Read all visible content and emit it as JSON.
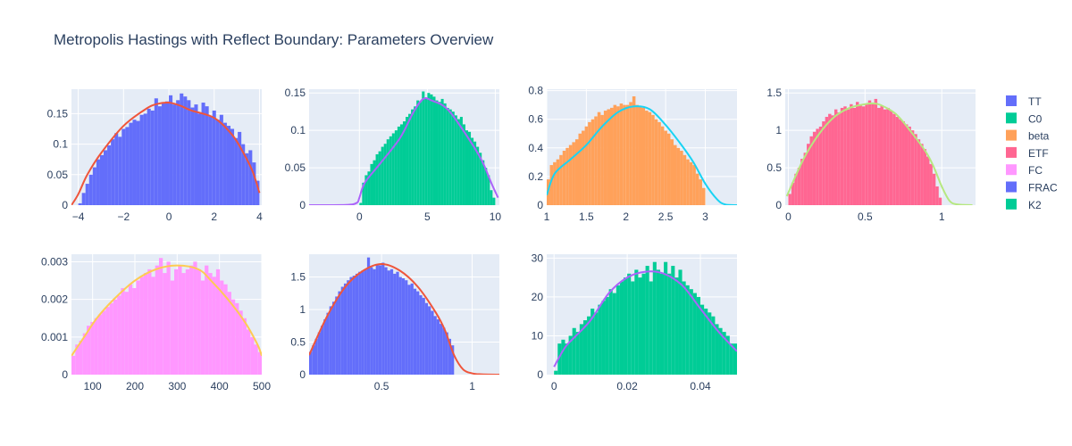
{
  "chart_data": {
    "type": "histogram-grid",
    "title": "Metropolis Hastings with Reflect Boundary: Parameters Overview",
    "legend": {
      "placement": "right",
      "entries": [
        {
          "name": "TT",
          "color": "#636efa"
        },
        {
          "name": "C0",
          "color": "#00cc96"
        },
        {
          "name": "beta",
          "color": "#ffa15a"
        },
        {
          "name": "ETF",
          "color": "#ff6692"
        },
        {
          "name": "FC",
          "color": "#ff97ff"
        },
        {
          "name": "FRAC",
          "color": "#636efa"
        },
        {
          "name": "K2",
          "color": "#00cc96"
        }
      ]
    },
    "panels": [
      {
        "name": "TT",
        "bar_color": "#636efa",
        "curve_color": "#ef553b",
        "xlim": [
          -4.3,
          4.1
        ],
        "ylim": [
          0,
          0.19
        ],
        "xticks": [
          {
            "v": -4,
            "l": "−4"
          },
          {
            "v": -2,
            "l": "−2"
          },
          {
            "v": 0,
            "l": "0"
          },
          {
            "v": 2,
            "l": "2"
          },
          {
            "v": 4,
            "l": "4"
          }
        ],
        "yticks": [
          {
            "v": 0,
            "l": "0"
          },
          {
            "v": 0.05,
            "l": "0.05"
          },
          {
            "v": 0.1,
            "l": "0.1"
          },
          {
            "v": 0.15,
            "l": "0.15"
          }
        ],
        "bin_edges": [
          -4,
          4
        ],
        "bins": 50,
        "hist": [
          0.003,
          0.02,
          0.035,
          0.05,
          0.062,
          0.075,
          0.082,
          0.09,
          0.098,
          0.108,
          0.118,
          0.112,
          0.125,
          0.128,
          0.135,
          0.14,
          0.138,
          0.148,
          0.15,
          0.158,
          0.155,
          0.175,
          0.162,
          0.168,
          0.17,
          0.18,
          0.165,
          0.172,
          0.183,
          0.178,
          0.172,
          0.16,
          0.165,
          0.15,
          0.168,
          0.162,
          0.145,
          0.155,
          0.14,
          0.148,
          0.135,
          0.13,
          0.125,
          0.11,
          0.12,
          0.1,
          0.085,
          0.09,
          0.07,
          0.04
        ],
        "curve_x": [
          -4.3,
          -4.0,
          -3.6,
          -3.0,
          -2.0,
          -1.0,
          -0.5,
          0.0,
          0.5,
          1.0,
          2.0,
          2.8,
          3.3,
          3.7,
          4.0
        ],
        "curve_y": [
          0.0,
          0.018,
          0.05,
          0.085,
          0.13,
          0.158,
          0.166,
          0.168,
          0.163,
          0.155,
          0.143,
          0.115,
          0.085,
          0.055,
          0.02
        ]
      },
      {
        "name": "C0",
        "bar_color": "#00cc96",
        "curve_color": "#ab63fa",
        "xlim": [
          -3.7,
          10.3
        ],
        "ylim": [
          0,
          0.155
        ],
        "xticks": [
          {
            "v": 0,
            "l": "0"
          },
          {
            "v": 5,
            "l": "5"
          },
          {
            "v": 10,
            "l": "10"
          }
        ],
        "yticks": [
          {
            "v": 0,
            "l": "0"
          },
          {
            "v": 0.05,
            "l": "0.05"
          },
          {
            "v": 0.1,
            "l": "0.1"
          },
          {
            "v": 0.15,
            "l": "0.15"
          }
        ],
        "bin_edges": [
          0,
          10
        ],
        "bins": 50,
        "hist": [
          0.003,
          0.03,
          0.04,
          0.045,
          0.055,
          0.06,
          0.068,
          0.072,
          0.078,
          0.082,
          0.088,
          0.092,
          0.096,
          0.1,
          0.105,
          0.108,
          0.112,
          0.118,
          0.122,
          0.128,
          0.132,
          0.14,
          0.138,
          0.152,
          0.142,
          0.15,
          0.148,
          0.145,
          0.14,
          0.138,
          0.142,
          0.136,
          0.13,
          0.128,
          0.125,
          0.12,
          0.115,
          0.118,
          0.108,
          0.1,
          0.098,
          0.09,
          0.085,
          0.078,
          0.07,
          0.06,
          0.05,
          0.04,
          0.02,
          0.01
        ],
        "curve_x": [
          -3.7,
          -1.0,
          -0.2,
          0.0,
          0.4,
          1.5,
          3.0,
          4.0,
          4.7,
          5.3,
          6.5,
          8.0,
          9.0,
          9.7,
          10.2
        ],
        "curve_y": [
          0.0,
          0.0003,
          0.003,
          0.01,
          0.03,
          0.055,
          0.09,
          0.125,
          0.142,
          0.14,
          0.128,
          0.09,
          0.06,
          0.03,
          0.01
        ]
      },
      {
        "name": "beta",
        "bar_color": "#ffa15a",
        "curve_color": "#19d3f3",
        "xlim": [
          1.0,
          3.4
        ],
        "ylim": [
          0,
          0.81
        ],
        "xticks": [
          {
            "v": 1,
            "l": "1"
          },
          {
            "v": 1.5,
            "l": "1.5"
          },
          {
            "v": 2,
            "l": "2"
          },
          {
            "v": 2.5,
            "l": "2.5"
          },
          {
            "v": 3,
            "l": "3"
          }
        ],
        "yticks": [
          {
            "v": 0,
            "l": "0"
          },
          {
            "v": 0.2,
            "l": "0.2"
          },
          {
            "v": 0.4,
            "l": "0.4"
          },
          {
            "v": 0.6,
            "l": "0.6"
          },
          {
            "v": 0.8,
            "l": "0.8"
          }
        ],
        "bin_edges": [
          1,
          3
        ],
        "bins": 50,
        "hist": [
          0.18,
          0.28,
          0.3,
          0.32,
          0.35,
          0.38,
          0.4,
          0.42,
          0.44,
          0.46,
          0.5,
          0.52,
          0.55,
          0.58,
          0.6,
          0.62,
          0.65,
          0.63,
          0.66,
          0.67,
          0.68,
          0.7,
          0.69,
          0.71,
          0.7,
          0.7,
          0.72,
          0.76,
          0.7,
          0.69,
          0.68,
          0.66,
          0.65,
          0.63,
          0.6,
          0.58,
          0.55,
          0.52,
          0.5,
          0.46,
          0.42,
          0.4,
          0.38,
          0.35,
          0.32,
          0.3,
          0.28,
          0.22,
          0.18,
          0.12
        ],
        "curve_x": [
          1.0,
          1.1,
          1.3,
          1.5,
          1.7,
          1.9,
          2.1,
          2.3,
          2.5,
          2.7,
          2.85,
          3.0,
          3.15,
          3.25,
          3.4
        ],
        "curve_y": [
          0.07,
          0.22,
          0.32,
          0.42,
          0.55,
          0.65,
          0.69,
          0.67,
          0.56,
          0.42,
          0.3,
          0.15,
          0.04,
          0.005,
          0.0
        ]
      },
      {
        "name": "ETF",
        "bar_color": "#ff6692",
        "curve_color": "#b6e880",
        "xlim": [
          -0.02,
          1.22
        ],
        "ylim": [
          0,
          1.55
        ],
        "xticks": [
          {
            "v": 0,
            "l": "0"
          },
          {
            "v": 0.5,
            "l": "0.5"
          },
          {
            "v": 1,
            "l": "1"
          }
        ],
        "yticks": [
          {
            "v": 0,
            "l": "0"
          },
          {
            "v": 0.5,
            "l": "0.5"
          },
          {
            "v": 1,
            "l": "1"
          },
          {
            "v": 1.5,
            "l": "1.5"
          }
        ],
        "bin_edges": [
          0,
          1
        ],
        "bins": 50,
        "hist": [
          0.15,
          0.3,
          0.42,
          0.5,
          0.62,
          0.7,
          0.82,
          0.92,
          0.98,
          1.02,
          1.05,
          1.12,
          1.18,
          1.22,
          1.2,
          1.28,
          1.24,
          1.3,
          1.32,
          1.28,
          1.35,
          1.3,
          1.38,
          1.34,
          1.32,
          1.36,
          1.4,
          1.35,
          1.42,
          1.3,
          1.33,
          1.28,
          1.3,
          1.26,
          1.22,
          1.18,
          1.15,
          1.12,
          1.08,
          1.05,
          1.0,
          0.95,
          0.88,
          0.82,
          0.75,
          0.65,
          0.55,
          0.42,
          0.25,
          0.1
        ],
        "curve_x": [
          -0.01,
          0.1,
          0.2,
          0.3,
          0.4,
          0.5,
          0.55,
          0.6,
          0.7,
          0.8,
          0.9,
          0.95,
          1.0,
          1.05,
          1.1,
          1.2
        ],
        "curve_y": [
          0.12,
          0.62,
          0.95,
          1.18,
          1.3,
          1.35,
          1.36,
          1.34,
          1.22,
          0.98,
          0.7,
          0.5,
          0.25,
          0.06,
          0.01,
          0.0
        ]
      },
      {
        "name": "FC",
        "bar_color": "#ff97ff",
        "curve_color": "#fecb52",
        "xlim": [
          50,
          500
        ],
        "ylim": [
          0,
          0.0032
        ],
        "xticks": [
          {
            "v": 100,
            "l": "100"
          },
          {
            "v": 200,
            "l": "200"
          },
          {
            "v": 300,
            "l": "300"
          },
          {
            "v": 400,
            "l": "400"
          },
          {
            "v": 500,
            "l": "500"
          }
        ],
        "yticks": [
          {
            "v": 0,
            "l": "0"
          },
          {
            "v": 0.001,
            "l": "0.001"
          },
          {
            "v": 0.002,
            "l": "0.002"
          },
          {
            "v": 0.003,
            "l": "0.003"
          }
        ],
        "bin_edges": [
          50,
          500
        ],
        "bins": 50,
        "hist": [
          0.0005,
          0.0008,
          0.0009,
          0.0011,
          0.0013,
          0.0014,
          0.0015,
          0.0016,
          0.0017,
          0.0018,
          0.0019,
          0.002,
          0.0021,
          0.0023,
          0.0022,
          0.0024,
          0.0023,
          0.0025,
          0.0026,
          0.0027,
          0.0028,
          0.0026,
          0.0029,
          0.0031,
          0.0027,
          0.003,
          0.0025,
          0.0028,
          0.0029,
          0.0027,
          0.0028,
          0.0029,
          0.003,
          0.0028,
          0.0025,
          0.0029,
          0.0027,
          0.0026,
          0.0028,
          0.0025,
          0.0024,
          0.0022,
          0.002,
          0.0019,
          0.0017,
          0.0015,
          0.0012,
          0.001,
          0.0008,
          0.0006
        ],
        "curve_x": [
          50,
          80,
          110,
          150,
          200,
          250,
          300,
          350,
          380,
          420,
          460,
          490,
          500
        ],
        "curve_y": [
          0.0005,
          0.001,
          0.0015,
          0.002,
          0.0025,
          0.0028,
          0.0029,
          0.0028,
          0.0025,
          0.002,
          0.0014,
          0.0008,
          0.0005
        ]
      },
      {
        "name": "FRAC",
        "bar_color": "#636efa",
        "curve_color": "#ef553b",
        "xlim": [
          0.1,
          1.15
        ],
        "ylim": [
          0,
          1.85
        ],
        "xticks": [
          {
            "v": 0.5,
            "l": "0.5"
          },
          {
            "v": 1,
            "l": "1"
          }
        ],
        "yticks": [
          {
            "v": 0,
            "l": "0"
          },
          {
            "v": 0.5,
            "l": "0.5"
          },
          {
            "v": 1,
            "l": "1"
          },
          {
            "v": 1.5,
            "l": "1.5"
          }
        ],
        "bin_edges": [
          0.1,
          0.9
        ],
        "bins": 50,
        "hist": [
          0.35,
          0.45,
          0.55,
          0.65,
          0.75,
          0.85,
          0.95,
          1.05,
          1.12,
          1.2,
          1.28,
          1.35,
          1.4,
          1.45,
          1.5,
          1.52,
          1.55,
          1.58,
          1.6,
          1.62,
          1.8,
          1.65,
          1.62,
          1.7,
          1.68,
          1.72,
          1.65,
          1.6,
          1.62,
          1.55,
          1.58,
          1.5,
          1.48,
          1.45,
          1.38,
          1.4,
          1.32,
          1.28,
          1.22,
          1.18,
          1.1,
          1.05,
          0.98,
          0.9,
          0.85,
          0.78,
          0.72,
          0.65,
          0.55,
          0.45
        ],
        "curve_x": [
          0.1,
          0.2,
          0.3,
          0.4,
          0.5,
          0.6,
          0.7,
          0.8,
          0.85,
          0.9,
          0.95,
          1.0,
          1.05,
          1.15
        ],
        "curve_y": [
          0.3,
          0.9,
          1.35,
          1.6,
          1.7,
          1.6,
          1.35,
          0.95,
          0.68,
          0.3,
          0.08,
          0.02,
          0.005,
          0.0
        ]
      },
      {
        "name": "K2",
        "bar_color": "#00cc96",
        "curve_color": "#ab63fa",
        "xlim": [
          -0.002,
          0.05
        ],
        "ylim": [
          0,
          31
        ],
        "xticks": [
          {
            "v": 0,
            "l": "0"
          },
          {
            "v": 0.02,
            "l": "0.02"
          },
          {
            "v": 0.04,
            "l": "0.04"
          }
        ],
        "yticks": [
          {
            "v": 0,
            "l": "0"
          },
          {
            "v": 10,
            "l": "10"
          },
          {
            "v": 20,
            "l": "20"
          },
          {
            "v": 30,
            "l": "30"
          }
        ],
        "bin_edges": [
          0,
          0.05
        ],
        "bins": 50,
        "hist": [
          1,
          8,
          9,
          8,
          10,
          12,
          11,
          13,
          14,
          15,
          17,
          16,
          18,
          19,
          20,
          22,
          21,
          23,
          24,
          25,
          26,
          24,
          27,
          25,
          26,
          28,
          24,
          29,
          27,
          26,
          29,
          26,
          28,
          25,
          27,
          24,
          23,
          22,
          21,
          20,
          18,
          17,
          16,
          15,
          13,
          12,
          11,
          10,
          8,
          8
        ],
        "curve_x": [
          0.0,
          0.003,
          0.006,
          0.01,
          0.015,
          0.02,
          0.025,
          0.03,
          0.035,
          0.04,
          0.045,
          0.05
        ],
        "curve_y": [
          2,
          7,
          10,
          14,
          21,
          25,
          26.5,
          26,
          23,
          17,
          11,
          6
        ]
      }
    ]
  }
}
